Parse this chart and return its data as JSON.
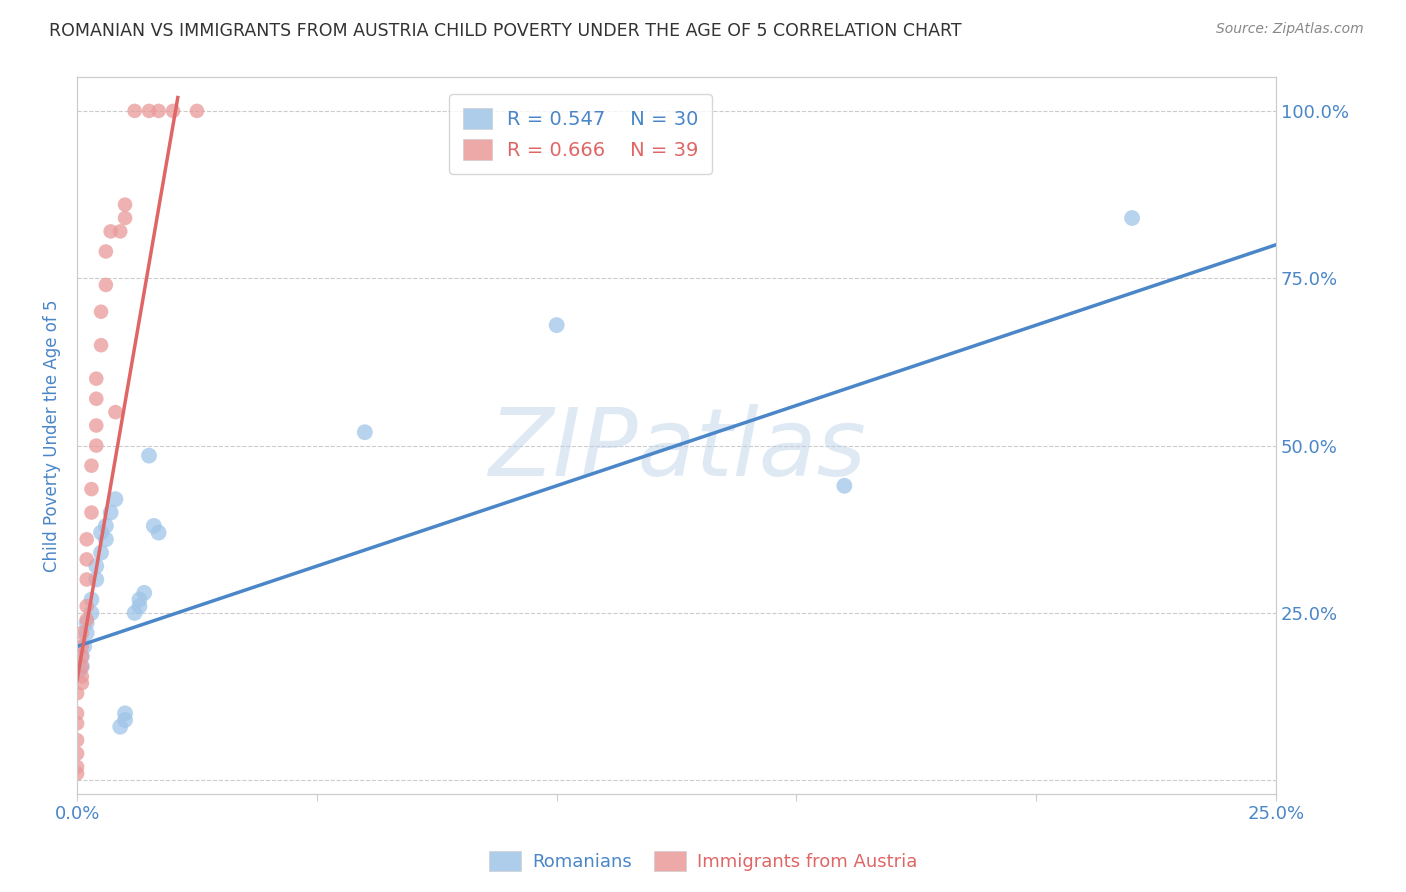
{
  "title": "ROMANIAN VS IMMIGRANTS FROM AUSTRIA CHILD POVERTY UNDER THE AGE OF 5 CORRELATION CHART",
  "source": "Source: ZipAtlas.com",
  "ylabel": "Child Poverty Under the Age of 5",
  "watermark": "ZIPatlas",
  "xlim": [
    0.0,
    0.25
  ],
  "ylim": [
    -0.02,
    1.05
  ],
  "xtick_positions": [
    0.0,
    0.05,
    0.1,
    0.15,
    0.2,
    0.25
  ],
  "xtick_labels": [
    "0.0%",
    "",
    "",
    "",
    "",
    "25.0%"
  ],
  "ytick_positions": [
    0.0,
    0.25,
    0.5,
    0.75,
    1.0
  ],
  "ytick_labels": [
    "",
    "25.0%",
    "50.0%",
    "75.0%",
    "100.0%"
  ],
  "blue_color": "#9fc5e8",
  "pink_color": "#ea9999",
  "blue_line_color": "#4a86c8",
  "pink_line_color": "#e06666",
  "legend_blue_r": "R = 0.547",
  "legend_blue_n": "N = 30",
  "legend_pink_r": "R = 0.666",
  "legend_pink_n": "N = 39",
  "label_romanians": "Romanians",
  "label_immigrants": "Immigrants from Austria",
  "title_color": "#333333",
  "axis_color": "#4a86c8",
  "grid_color": "#cccccc",
  "background_color": "#ffffff",
  "blue_x": [
    0.0005,
    0.001,
    0.001,
    0.0015,
    0.002,
    0.002,
    0.003,
    0.003,
    0.004,
    0.004,
    0.005,
    0.005,
    0.006,
    0.006,
    0.007,
    0.008,
    0.009,
    0.01,
    0.01,
    0.012,
    0.013,
    0.013,
    0.014,
    0.015,
    0.016,
    0.017,
    0.06,
    0.1,
    0.16,
    0.22
  ],
  "blue_y": [
    0.165,
    0.17,
    0.185,
    0.2,
    0.22,
    0.235,
    0.25,
    0.27,
    0.3,
    0.32,
    0.34,
    0.37,
    0.36,
    0.38,
    0.4,
    0.42,
    0.08,
    0.1,
    0.09,
    0.25,
    0.26,
    0.27,
    0.28,
    0.485,
    0.38,
    0.37,
    0.52,
    0.68,
    0.44,
    0.84
  ],
  "pink_x": [
    0.0,
    0.0,
    0.0,
    0.0,
    0.0,
    0.0,
    0.0,
    0.001,
    0.001,
    0.001,
    0.001,
    0.001,
    0.001,
    0.002,
    0.002,
    0.002,
    0.002,
    0.002,
    0.003,
    0.003,
    0.003,
    0.004,
    0.004,
    0.004,
    0.004,
    0.005,
    0.005,
    0.006,
    0.006,
    0.007,
    0.008,
    0.009,
    0.01,
    0.01,
    0.012,
    0.015,
    0.017,
    0.02,
    0.025
  ],
  "pink_y": [
    0.01,
    0.02,
    0.04,
    0.06,
    0.085,
    0.1,
    0.13,
    0.145,
    0.155,
    0.17,
    0.185,
    0.2,
    0.22,
    0.24,
    0.26,
    0.3,
    0.33,
    0.36,
    0.4,
    0.435,
    0.47,
    0.5,
    0.53,
    0.57,
    0.6,
    0.65,
    0.7,
    0.74,
    0.79,
    0.82,
    0.55,
    0.82,
    0.84,
    0.86,
    1.0,
    1.0,
    1.0,
    1.0,
    1.0
  ],
  "blue_trend": [
    0.0,
    0.25,
    0.2,
    0.8
  ],
  "pink_trend": [
    0.0,
    0.021,
    0.15,
    1.02
  ]
}
